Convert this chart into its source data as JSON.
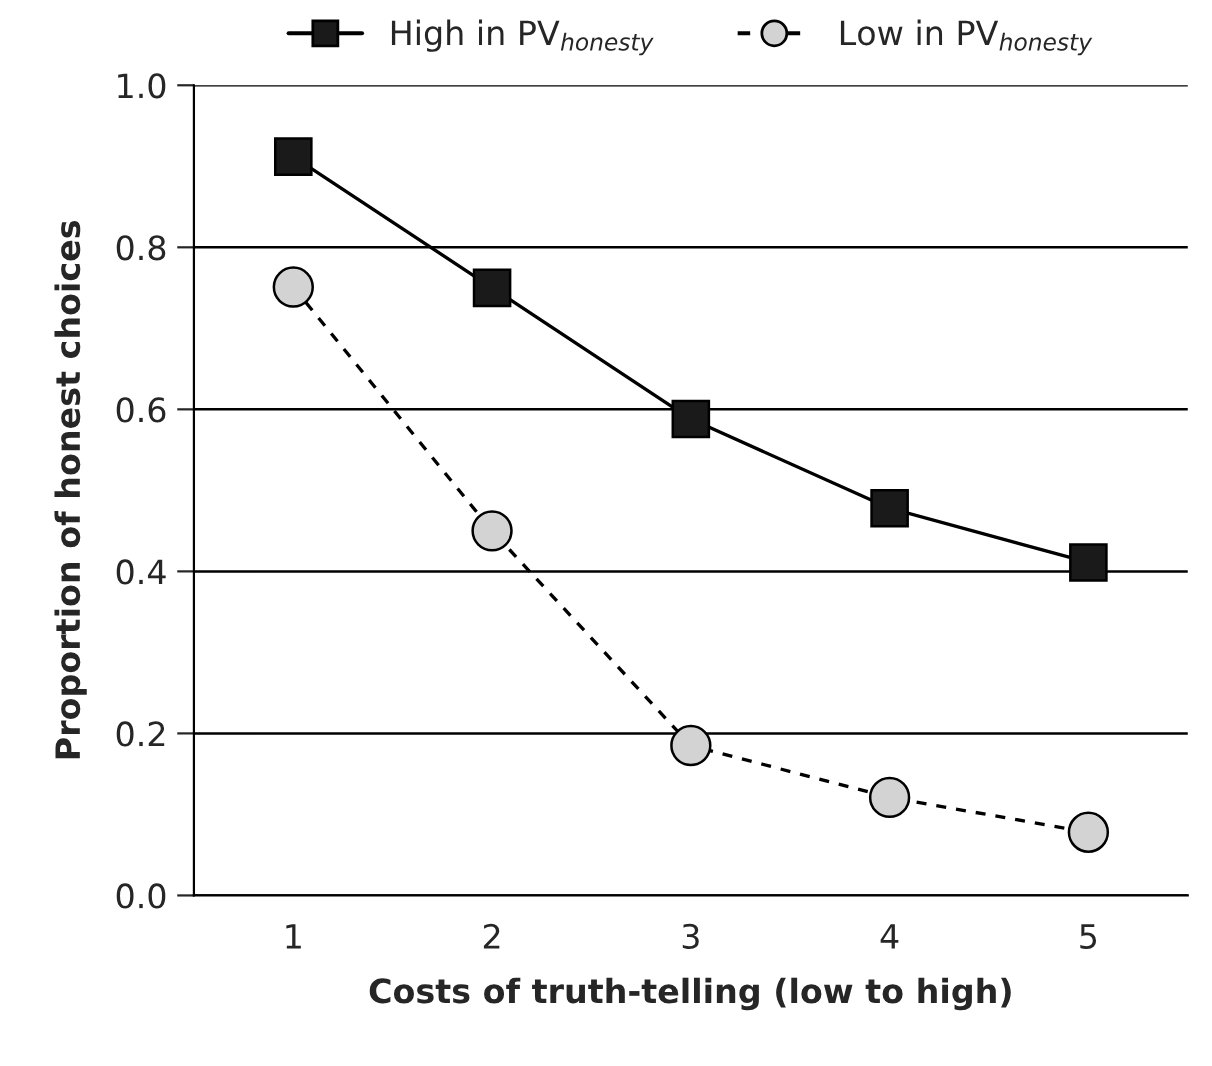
{
  "chart_data": {
    "type": "line",
    "xlabel": "Costs of truth-telling (low to high)",
    "ylabel": "Proportion of honest choices",
    "categories": [
      "1",
      "2",
      "3",
      "4",
      "5"
    ],
    "series": [
      {
        "name": "High in PV$_{honesty}$",
        "color": "#1a1a1a",
        "marker": "square",
        "line_style": "solid",
        "values": [
          0.912,
          0.75,
          0.588,
          0.478,
          0.411
        ]
      },
      {
        "name": "Low in PV$_{honesty}$",
        "color": "#d3d3d3",
        "marker": "circle",
        "line_style": "dashed",
        "values": [
          0.751,
          0.45,
          0.185,
          0.121,
          0.078
        ]
      }
    ],
    "ylim": [
      0,
      1.0
    ],
    "yticks": [
      {
        "value": 0,
        "label": "0.0"
      },
      {
        "value": 0.2,
        "label": "0.2"
      },
      {
        "value": 0.4,
        "label": "0.4"
      },
      {
        "value": 0.6,
        "label": "0.6"
      },
      {
        "value": 0.8,
        "label": "0.8"
      },
      {
        "value": 1.0,
        "label": "1.0"
      }
    ],
    "grid": "y",
    "legend": "top"
  }
}
